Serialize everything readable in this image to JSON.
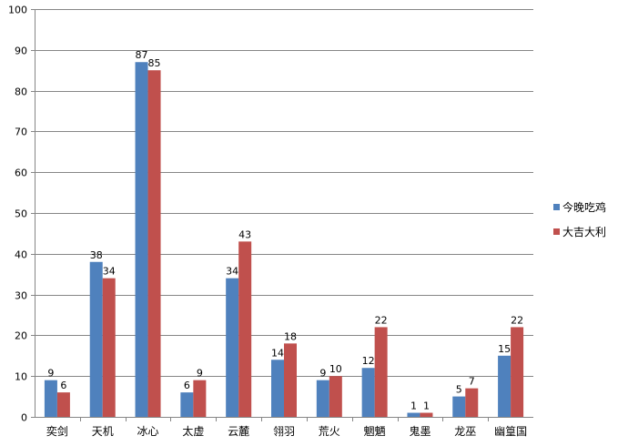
{
  "chart_data": {
    "type": "bar",
    "categories": [
      "奕剑",
      "天机",
      "冰心",
      "太虚",
      "云麓",
      "翎羽",
      "荒火",
      "魍魉",
      "鬼墨",
      "龙巫",
      "幽篁国"
    ],
    "series": [
      {
        "name": "今晚吃鸡",
        "values": [
          9,
          38,
          87,
          6,
          34,
          14,
          9,
          12,
          1,
          5,
          15
        ],
        "color": "#4F81BD"
      },
      {
        "name": "大吉大利",
        "values": [
          6,
          34,
          85,
          9,
          43,
          18,
          10,
          22,
          1,
          7,
          22
        ],
        "color": "#C0504D"
      }
    ],
    "ylim": [
      0,
      100
    ],
    "yticks": [
      0,
      10,
      20,
      30,
      40,
      50,
      60,
      70,
      80,
      90,
      100
    ],
    "grid": true,
    "legend": "right",
    "title": "",
    "xlabel": "",
    "ylabel": ""
  }
}
